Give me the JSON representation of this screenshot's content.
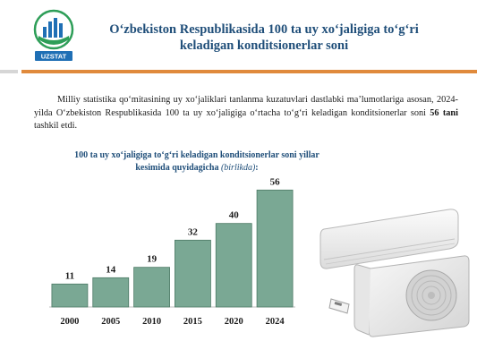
{
  "header": {
    "logo_text": "UZSTAT",
    "title_line1": "O‘zbekiston Respublikasida 100 ta uy xo‘jaligiga to‘g‘ri",
    "title_line2": "keladigan konditsionerlar soni"
  },
  "paragraph": {
    "text_before": "Milliy statistika qo‘mitasining uy xo‘jaliklari tanlanma kuzatuvlari dastlabki ma’lumotlariga asosan, 2024-yilda O‘zbekiston Respublikasida 100 ta uy xo‘jaligiga o‘rtacha to‘g‘ri keladigan konditsionerlar soni ",
    "bold_value": "56 tani",
    "text_after": " tashkil etdi."
  },
  "chart_data": {
    "type": "bar",
    "title_line1": "100 ta uy xo‘jaligiga to‘g‘ri keladigan konditsionerlar soni yillar",
    "title_line2": "kesimida quyidagicha",
    "unit": "(birlikda)",
    "title_suffix": ":",
    "categories": [
      "2000",
      "2005",
      "2010",
      "2015",
      "2020",
      "2024"
    ],
    "values": [
      11,
      14,
      19,
      32,
      40,
      56
    ],
    "ylim": [
      0,
      60
    ],
    "bar_color": "#7aa894",
    "bar_stroke": "#4d7a66",
    "grid": false
  },
  "icons": {
    "logo": "uzstat-logo-icon",
    "illustration": "air-conditioner-icon"
  }
}
